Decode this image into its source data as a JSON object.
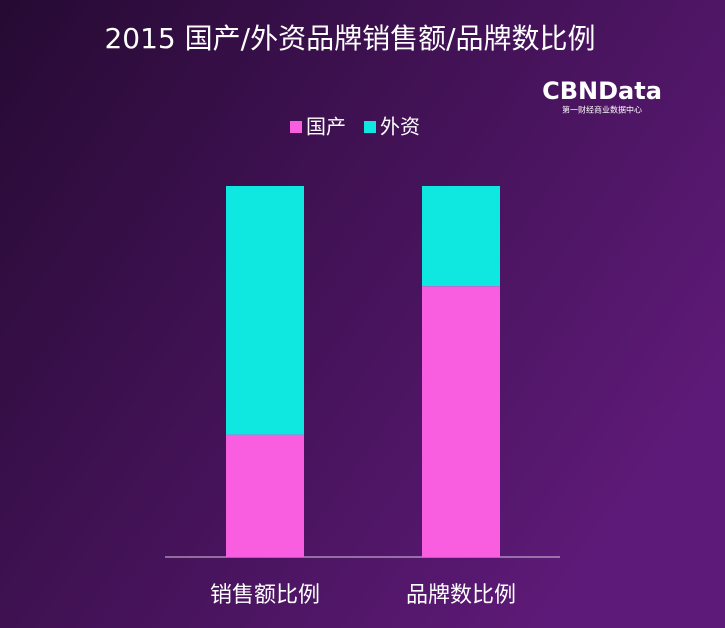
{
  "chart_data": {
    "type": "bar",
    "stacked": true,
    "title": "2015 国产/外资品牌销售额/品牌数比例",
    "categories": [
      "销售额比例",
      "品牌数比例"
    ],
    "series": [
      {
        "name": "国产",
        "color": "#f95ee0",
        "values": [
          33,
          73
        ]
      },
      {
        "name": "外资",
        "color": "#0fe8e0",
        "values": [
          67,
          27
        ]
      }
    ],
    "legend": "top"
  },
  "logo": {
    "name": "CBNData",
    "tagline": "第一财经商业数据中心"
  }
}
